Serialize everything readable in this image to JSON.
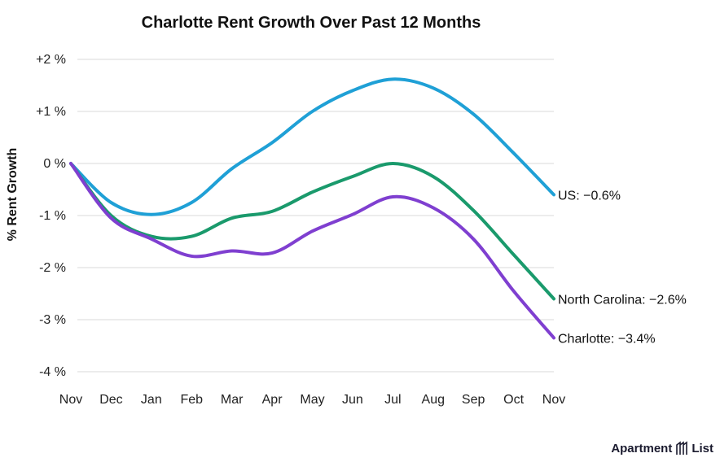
{
  "chart_data": {
    "type": "line",
    "title": "Charlotte Rent Growth Over Past 12 Months",
    "ylabel": "% Rent Growth",
    "xlabel": "",
    "categories": [
      "Nov",
      "Dec",
      "Jan",
      "Feb",
      "Mar",
      "Apr",
      "May",
      "Jun",
      "Jul",
      "Aug",
      "Sep",
      "Oct",
      "Nov"
    ],
    "yticks": [
      {
        "value": 2,
        "label": "+2 %"
      },
      {
        "value": 1,
        "label": "+1 %"
      },
      {
        "value": 0,
        "label": "0 %"
      },
      {
        "value": -1,
        "label": "-1 %"
      },
      {
        "value": -2,
        "label": "-2 %"
      },
      {
        "value": -3,
        "label": "-3 %"
      },
      {
        "value": -4,
        "label": "-4 %"
      }
    ],
    "ylim": [
      -4,
      2
    ],
    "grid": true,
    "series": [
      {
        "name": "US",
        "end_label": "US: −0.6%",
        "color": "#1fa0d6",
        "values": [
          0,
          -0.75,
          -0.98,
          -0.75,
          -0.1,
          0.4,
          1.0,
          1.4,
          1.62,
          1.45,
          0.95,
          0.2,
          -0.6
        ]
      },
      {
        "name": "North Carolina",
        "end_label": "North Carolina: −2.6%",
        "color": "#1a9a6c",
        "values": [
          0,
          -1.0,
          -1.4,
          -1.4,
          -1.05,
          -0.92,
          -0.55,
          -0.25,
          0.0,
          -0.25,
          -0.9,
          -1.75,
          -2.6
        ]
      },
      {
        "name": "Charlotte",
        "end_label": "Charlotte: −3.4%",
        "color": "#7f3fd0",
        "values": [
          0,
          -1.05,
          -1.45,
          -1.78,
          -1.68,
          -1.72,
          -1.3,
          -0.98,
          -0.64,
          -0.85,
          -1.45,
          -2.45,
          -3.35
        ]
      }
    ]
  },
  "branding": {
    "logo_text_1": "Apartment",
    "logo_text_2": "List"
  }
}
